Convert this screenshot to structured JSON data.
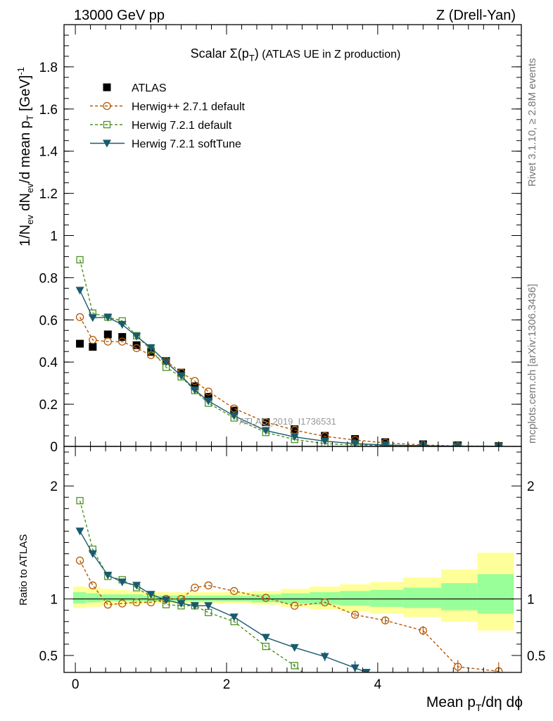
{
  "header": {
    "left": "13000 GeV pp",
    "right": "Z (Drell-Yan)"
  },
  "side_text": {
    "rivet": "Rivet 3.1.10, ≥ 2.8M events",
    "mcplots": "mcplots.cern.ch [arXiv:1306.3436]"
  },
  "watermark": "ATLAS_2019_I1736531",
  "chart_data": [
    {
      "type": "line",
      "title_parts": {
        "scalar": "Scalar Σ(p",
        "sub": "T",
        "close": ")",
        "rest": " (ATLAS UE in Z production)"
      },
      "ylabel_parts": {
        "a": "1/N",
        "a_sub": "ev",
        "b": " dN",
        "b_sub": "ev",
        "c": "/d mean p",
        "c_sub": "T",
        "d": " [GeV]",
        "d_sup": "-1"
      },
      "xlim": [
        -0.15,
        5.9
      ],
      "ylim": [
        0,
        2.0
      ],
      "yticks": [
        0,
        0.2,
        0.4,
        0.6,
        0.8,
        1,
        1.2,
        1.4,
        1.6,
        1.8
      ],
      "ytick_labels": [
        "0",
        "0.2",
        "0.4",
        "0.6",
        "0.8",
        "1",
        "1.2",
        "1.4",
        "1.6",
        "1.8"
      ],
      "grid": false,
      "legend_position": "top-left",
      "series": [
        {
          "name": "ATLAS",
          "color": "#000000",
          "marker": "square-filled",
          "line": "none",
          "x": [
            0.06,
            0.23,
            0.43,
            0.62,
            0.81,
            1.0,
            1.2,
            1.4,
            1.58,
            1.76,
            2.1,
            2.52,
            2.9,
            3.3,
            3.7,
            4.1,
            4.6,
            5.06,
            5.6
          ],
          "y": [
            0.487,
            0.472,
            0.531,
            0.519,
            0.48,
            0.448,
            0.405,
            0.35,
            0.285,
            0.235,
            0.17,
            0.115,
            0.082,
            0.05,
            0.035,
            0.02,
            0.01,
            0.005,
            0.002
          ]
        },
        {
          "name": "Herwig++ 2.7.1 default",
          "color": "#b35806",
          "marker": "circle-open",
          "line": "dashed",
          "x": [
            0.06,
            0.23,
            0.43,
            0.62,
            0.81,
            1.0,
            1.2,
            1.4,
            1.58,
            1.76,
            2.1,
            2.52,
            2.9,
            3.3,
            3.7,
            4.1,
            4.6,
            5.06,
            5.6
          ],
          "y": [
            0.613,
            0.505,
            0.497,
            0.497,
            0.466,
            0.433,
            0.405,
            0.35,
            0.31,
            0.26,
            0.18,
            0.115,
            0.077,
            0.048,
            0.03,
            0.017,
            0.007,
            0.002,
            0.001
          ]
        },
        {
          "name": "Herwig 7.2.1 default",
          "color": "#4d9221",
          "marker": "square-open",
          "line": "dashed",
          "x": [
            0.06,
            0.23,
            0.43,
            0.62,
            0.81,
            1.0,
            1.2,
            1.4,
            1.58,
            1.76,
            2.1,
            2.52,
            2.9,
            3.3,
            3.7,
            4.1,
            4.6,
            5.06,
            5.6
          ],
          "y": [
            0.885,
            0.632,
            0.613,
            0.595,
            0.525,
            0.458,
            0.375,
            0.33,
            0.265,
            0.205,
            0.135,
            0.066,
            0.033,
            0.013,
            0.007,
            0.004,
            0.002,
            0.001,
            0.0005
          ]
        },
        {
          "name": "Herwig 7.2.1 softTune",
          "color": "#1a5a6e",
          "marker": "triangle-down-filled",
          "line": "solid",
          "x": [
            0.06,
            0.23,
            0.43,
            0.62,
            0.81,
            1.0,
            1.2,
            1.4,
            1.58,
            1.76,
            2.1,
            2.52,
            2.9,
            3.3,
            3.7,
            4.1,
            4.6,
            5.06,
            5.6
          ],
          "y": [
            0.74,
            0.61,
            0.612,
            0.578,
            0.522,
            0.468,
            0.4,
            0.335,
            0.268,
            0.215,
            0.145,
            0.075,
            0.045,
            0.025,
            0.013,
            0.007,
            0.003,
            0.001,
            0.0005
          ]
        }
      ]
    },
    {
      "type": "line",
      "ylabel": "Ratio to ATLAS",
      "xlabel_parts": {
        "a": "Mean p",
        "a_sub": "T",
        "b": "/dη dϕ"
      },
      "xlim": [
        -0.15,
        5.9
      ],
      "ylim": [
        0.35,
        2.35
      ],
      "yticks": [
        0.5,
        1,
        2
      ],
      "ytick_labels": [
        "0.5",
        "1",
        "2"
      ],
      "xticks": [
        0,
        2,
        4
      ],
      "xtick_labels": [
        "0",
        "2",
        "4"
      ],
      "grid": false,
      "reference_line": 1,
      "bands": {
        "bins": [
          [
            -0.03,
            0.14
          ],
          [
            0.14,
            0.33
          ],
          [
            0.33,
            0.52
          ],
          [
            0.52,
            0.71
          ],
          [
            0.71,
            0.9
          ],
          [
            0.9,
            1.1
          ],
          [
            1.1,
            1.3
          ],
          [
            1.3,
            1.49
          ],
          [
            1.49,
            1.67
          ],
          [
            1.67,
            1.86
          ],
          [
            1.86,
            2.33
          ],
          [
            2.33,
            2.72
          ],
          [
            2.72,
            3.1
          ],
          [
            3.1,
            3.5
          ],
          [
            3.5,
            3.9
          ],
          [
            3.9,
            4.34
          ],
          [
            4.34,
            4.84
          ],
          [
            4.84,
            5.32
          ],
          [
            5.32,
            5.8
          ]
        ],
        "inner": [
          [
            0.96,
            1.06
          ],
          [
            0.97,
            1.05
          ],
          [
            0.98,
            1.04
          ],
          [
            0.98,
            1.04
          ],
          [
            0.98,
            1.04
          ],
          [
            0.98,
            1.03
          ],
          [
            0.98,
            1.03
          ],
          [
            0.98,
            1.03
          ],
          [
            0.98,
            1.03
          ],
          [
            0.98,
            1.03
          ],
          [
            0.98,
            1.03
          ],
          [
            0.97,
            1.04
          ],
          [
            0.96,
            1.05
          ],
          [
            0.95,
            1.06
          ],
          [
            0.94,
            1.07
          ],
          [
            0.93,
            1.08
          ],
          [
            0.92,
            1.1
          ],
          [
            0.9,
            1.14
          ],
          [
            0.87,
            1.22
          ]
        ],
        "outer": [
          [
            0.92,
            1.11
          ],
          [
            0.93,
            1.1
          ],
          [
            0.94,
            1.09
          ],
          [
            0.95,
            1.08
          ],
          [
            0.95,
            1.07
          ],
          [
            0.96,
            1.06
          ],
          [
            0.96,
            1.06
          ],
          [
            0.96,
            1.06
          ],
          [
            0.96,
            1.06
          ],
          [
            0.96,
            1.06
          ],
          [
            0.96,
            1.06
          ],
          [
            0.95,
            1.07
          ],
          [
            0.93,
            1.09
          ],
          [
            0.91,
            1.11
          ],
          [
            0.89,
            1.13
          ],
          [
            0.87,
            1.15
          ],
          [
            0.84,
            1.19
          ],
          [
            0.8,
            1.26
          ],
          [
            0.72,
            1.41
          ]
        ],
        "inner_color": "#99ff99",
        "outer_color": "#ffff99"
      },
      "series": [
        {
          "name": "Herwig++ 2.7.1 default",
          "color": "#b35806",
          "marker": "circle-open",
          "line": "dashed",
          "x": [
            0.06,
            0.23,
            0.43,
            0.62,
            0.81,
            1.0,
            1.2,
            1.4,
            1.58,
            1.76,
            2.1,
            2.52,
            2.9,
            3.3,
            3.7,
            4.1,
            4.6,
            5.06,
            5.6
          ],
          "y": [
            1.34,
            1.12,
            0.95,
            0.96,
            0.97,
            0.97,
            1.0,
            1.0,
            1.1,
            1.12,
            1.07,
            1.01,
            0.94,
            0.97,
            0.86,
            0.81,
            0.72,
            0.4,
            0.36
          ],
          "yerr": [
            0,
            0,
            0,
            0,
            0,
            0,
            0,
            0,
            0,
            0,
            0,
            0,
            0,
            0,
            0.02,
            0.03,
            0.04,
            0.06,
            0.08
          ]
        },
        {
          "name": "Herwig 7.2.1 default",
          "color": "#4d9221",
          "marker": "square-open",
          "line": "dashed",
          "x": [
            0.06,
            0.23,
            0.43,
            0.62,
            0.81,
            1.0,
            1.2,
            1.4,
            1.58,
            1.76,
            2.1,
            2.52,
            2.9,
            3.1
          ],
          "y": [
            1.87,
            1.44,
            1.2,
            1.17,
            1.1,
            1.02,
            0.95,
            0.94,
            0.94,
            0.88,
            0.8,
            0.58,
            0.41,
            0.3
          ],
          "yerr": [
            0,
            0,
            0,
            0,
            0,
            0,
            0,
            0,
            0,
            0,
            0,
            0,
            0.015,
            0
          ]
        },
        {
          "name": "Herwig 7.2.1 softTune",
          "color": "#1a5a6e",
          "marker": "triangle-down-filled",
          "line": "solid",
          "x": [
            0.06,
            0.23,
            0.43,
            0.62,
            0.81,
            1.0,
            1.2,
            1.4,
            1.58,
            1.76,
            2.1,
            2.52,
            2.9,
            3.3,
            3.7,
            3.85
          ],
          "y": [
            1.6,
            1.4,
            1.21,
            1.15,
            1.12,
            1.04,
            0.99,
            0.96,
            0.94,
            0.94,
            0.84,
            0.66,
            0.57,
            0.49,
            0.39,
            0.35
          ],
          "yerr": [
            0,
            0,
            0,
            0,
            0,
            0,
            0,
            0,
            0,
            0,
            0,
            0.012,
            0.02,
            0.04,
            0.06,
            0
          ]
        }
      ]
    }
  ]
}
